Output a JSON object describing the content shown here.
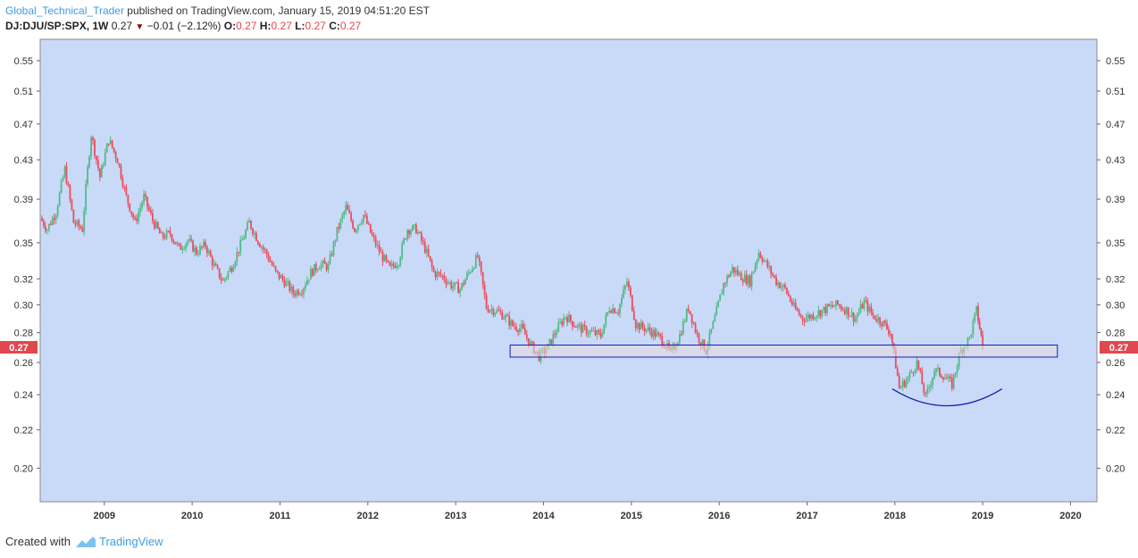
{
  "header": {
    "author": "Global_Technical_Trader",
    "published_text": " published on TradingView.com, January 15, 2019 04:51:20 EST",
    "symbol": "DJ:DJU/SP:SPX, 1W",
    "last": "0.27",
    "change": "−0.01 (−2.12%)",
    "o_label": "O:",
    "o_val": "0.27",
    "h_label": "H:",
    "h_val": "0.27",
    "l_label": "L:",
    "l_val": "0.27",
    "c_label": "C:",
    "c_val": "0.27"
  },
  "footer": {
    "created_with": "Created with",
    "brand": "TradingView"
  },
  "colors": {
    "plot_bg": "#c9daf8",
    "up": "#53b987",
    "down": "#eb4d5c",
    "box_stroke": "#1a1ab8",
    "box_fill": "#e4d8dd",
    "arc": "#1a1ab8",
    "price_tag": "#e0474f"
  },
  "chart_data": {
    "type": "line",
    "title": "DJ:DJU/SP:SPX, 1W",
    "x_ticks": [
      "2009",
      "2010",
      "2011",
      "2012",
      "2013",
      "2014",
      "2015",
      "2016",
      "2017",
      "2018",
      "2019",
      "2020"
    ],
    "y_ticks": [
      "0.55",
      "0.51",
      "0.47",
      "0.43",
      "0.39",
      "0.35",
      "0.32",
      "0.30",
      "0.28",
      "0.26",
      "0.24",
      "0.22",
      "0.20"
    ],
    "y_scale": "log",
    "y_range": [
      0.184,
      0.58
    ],
    "x_range": [
      2008.27,
      2020.3
    ],
    "last_price_label": "0.27",
    "series": [
      {
        "points": [
          [
            2008.27,
            0.372
          ],
          [
            2008.35,
            0.362
          ],
          [
            2008.45,
            0.378
          ],
          [
            2008.55,
            0.42
          ],
          [
            2008.65,
            0.368
          ],
          [
            2008.75,
            0.362
          ],
          [
            2008.85,
            0.458
          ],
          [
            2008.95,
            0.412
          ],
          [
            2009.05,
            0.452
          ],
          [
            2009.15,
            0.43
          ],
          [
            2009.25,
            0.392
          ],
          [
            2009.35,
            0.368
          ],
          [
            2009.45,
            0.392
          ],
          [
            2009.55,
            0.37
          ],
          [
            2009.65,
            0.355
          ],
          [
            2009.75,
            0.358
          ],
          [
            2009.85,
            0.345
          ],
          [
            2009.95,
            0.352
          ],
          [
            2010.05,
            0.342
          ],
          [
            2010.15,
            0.348
          ],
          [
            2010.25,
            0.33
          ],
          [
            2010.35,
            0.318
          ],
          [
            2010.45,
            0.33
          ],
          [
            2010.55,
            0.348
          ],
          [
            2010.65,
            0.368
          ],
          [
            2010.75,
            0.352
          ],
          [
            2010.85,
            0.34
          ],
          [
            2010.95,
            0.325
          ],
          [
            2011.05,
            0.318
          ],
          [
            2011.15,
            0.309
          ],
          [
            2011.25,
            0.312
          ],
          [
            2011.35,
            0.325
          ],
          [
            2011.45,
            0.332
          ],
          [
            2011.55,
            0.33
          ],
          [
            2011.65,
            0.36
          ],
          [
            2011.75,
            0.382
          ],
          [
            2011.85,
            0.362
          ],
          [
            2011.95,
            0.375
          ],
          [
            2012.05,
            0.355
          ],
          [
            2012.15,
            0.34
          ],
          [
            2012.25,
            0.328
          ],
          [
            2012.35,
            0.335
          ],
          [
            2012.45,
            0.362
          ],
          [
            2012.55,
            0.362
          ],
          [
            2012.65,
            0.345
          ],
          [
            2012.75,
            0.325
          ],
          [
            2012.85,
            0.322
          ],
          [
            2012.95,
            0.315
          ],
          [
            2013.05,
            0.312
          ],
          [
            2013.15,
            0.325
          ],
          [
            2013.25,
            0.338
          ],
          [
            2013.35,
            0.298
          ],
          [
            2013.45,
            0.296
          ],
          [
            2013.55,
            0.292
          ],
          [
            2013.65,
            0.285
          ],
          [
            2013.75,
            0.283
          ],
          [
            2013.85,
            0.272
          ],
          [
            2013.95,
            0.264
          ],
          [
            2014.05,
            0.27
          ],
          [
            2014.15,
            0.282
          ],
          [
            2014.25,
            0.292
          ],
          [
            2014.35,
            0.286
          ],
          [
            2014.45,
            0.282
          ],
          [
            2014.55,
            0.28
          ],
          [
            2014.65,
            0.278
          ],
          [
            2014.75,
            0.298
          ],
          [
            2014.85,
            0.296
          ],
          [
            2014.95,
            0.318
          ],
          [
            2015.05,
            0.286
          ],
          [
            2015.15,
            0.283
          ],
          [
            2015.25,
            0.28
          ],
          [
            2015.35,
            0.275
          ],
          [
            2015.45,
            0.266
          ],
          [
            2015.55,
            0.278
          ],
          [
            2015.65,
            0.298
          ],
          [
            2015.75,
            0.278
          ],
          [
            2015.85,
            0.268
          ],
          [
            2015.95,
            0.29
          ],
          [
            2016.05,
            0.316
          ],
          [
            2016.15,
            0.328
          ],
          [
            2016.25,
            0.322
          ],
          [
            2016.35,
            0.318
          ],
          [
            2016.45,
            0.342
          ],
          [
            2016.55,
            0.33
          ],
          [
            2016.65,
            0.318
          ],
          [
            2016.75,
            0.312
          ],
          [
            2016.85,
            0.298
          ],
          [
            2016.95,
            0.29
          ],
          [
            2017.05,
            0.292
          ],
          [
            2017.15,
            0.295
          ],
          [
            2017.25,
            0.298
          ],
          [
            2017.35,
            0.3
          ],
          [
            2017.45,
            0.296
          ],
          [
            2017.55,
            0.29
          ],
          [
            2017.65,
            0.302
          ],
          [
            2017.75,
            0.292
          ],
          [
            2017.85,
            0.288
          ],
          [
            2017.95,
            0.28
          ],
          [
            2018.05,
            0.244
          ],
          [
            2018.15,
            0.25
          ],
          [
            2018.25,
            0.26
          ],
          [
            2018.35,
            0.238
          ],
          [
            2018.45,
            0.255
          ],
          [
            2018.55,
            0.252
          ],
          [
            2018.65,
            0.246
          ],
          [
            2018.75,
            0.268
          ],
          [
            2018.85,
            0.276
          ],
          [
            2018.93,
            0.296
          ],
          [
            2019.0,
            0.271
          ]
        ]
      }
    ],
    "annotations": [
      {
        "type": "rectangle",
        "x0": 2013.62,
        "x1": 2019.85,
        "y0": 0.2635,
        "y1": 0.2715
      },
      {
        "type": "arc",
        "x0": 2017.97,
        "x1": 2019.22,
        "y_ends": 0.2435,
        "y_bottom": 0.2335
      }
    ]
  }
}
